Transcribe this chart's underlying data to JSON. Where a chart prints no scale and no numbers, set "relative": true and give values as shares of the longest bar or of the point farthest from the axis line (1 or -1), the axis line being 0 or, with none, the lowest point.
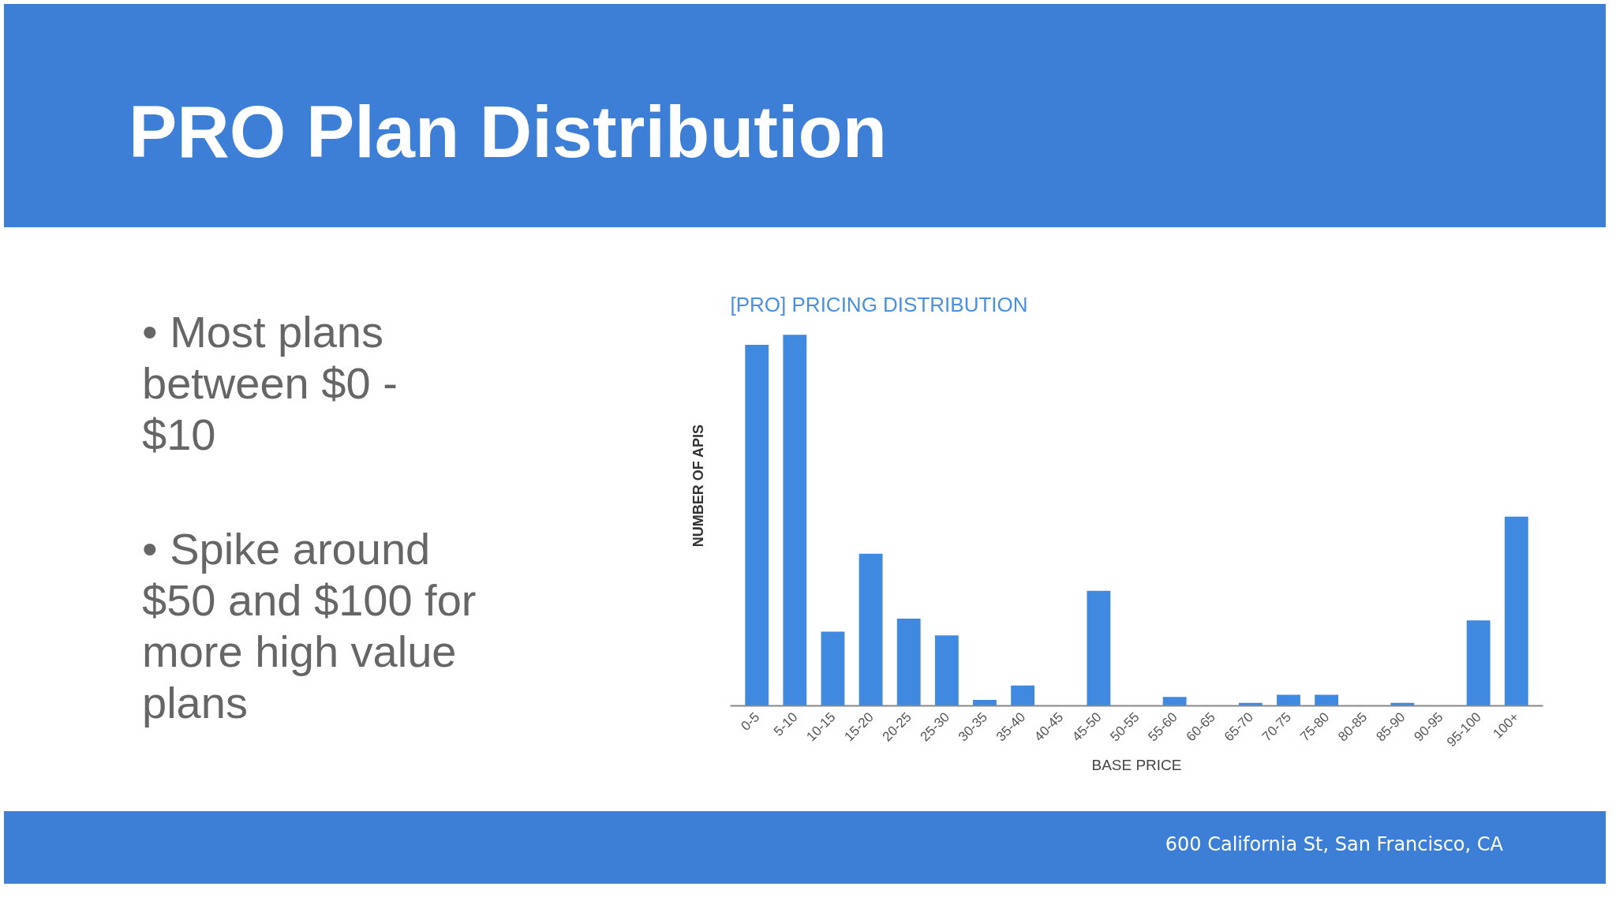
{
  "chart_data": {
    "type": "bar",
    "title": "PRO Plan Distribution",
    "subtitle": "[PRO] PRICING DISTRIBUTION",
    "xlabel": "BASE PRICE",
    "ylabel": "NUMBER OF APIS",
    "categories": [
      "0-5",
      "5-10",
      "10-15",
      "15-20",
      "20-25",
      "25-30",
      "30-35",
      "35-40",
      "40-45",
      "45-50",
      "50-55",
      "55-60",
      "60-65",
      "65-70",
      "70-75",
      "75-80",
      "80-85",
      "85-90",
      "90-95",
      "95-100",
      "100+"
    ],
    "values": [
      0.973,
      1,
      0.2,
      0.41,
      0.235,
      0.19,
      0.016,
      0.055,
      0,
      0.31,
      0,
      0.024,
      0,
      0.008,
      0.03,
      0.03,
      0,
      0.008,
      0,
      0.23,
      0.51
    ],
    "color": "#3f8ae0",
    "relative": true,
    "grid": false,
    "annotations": [
      "• Most plans between $0 - $10",
      "• Spike around $50 and $100 for more high value plans",
      "600 California St, San Francisco, CA"
    ]
  }
}
